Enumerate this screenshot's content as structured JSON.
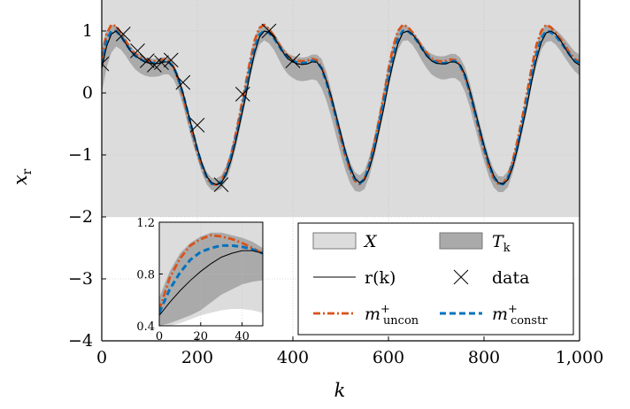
{
  "chart_data": {
    "type": "line",
    "xlabel": "k",
    "ylabel": "x",
    "ylabel_sub": "r",
    "xlim": [
      0,
      1000
    ],
    "ylim": [
      -4,
      1.5
    ],
    "xticks": [
      0,
      200,
      400,
      600,
      800,
      1000
    ],
    "xtick_labels": [
      "0",
      "200",
      "400",
      "600",
      "800",
      "1,000"
    ],
    "yticks": [
      1,
      0,
      -1,
      -2,
      -3,
      -4
    ],
    "ytick_labels": [
      "1",
      "0",
      "−1",
      "−2",
      "−3",
      "−4"
    ],
    "grid": true,
    "region_X": {
      "y_min": -2,
      "y_max": 1.5,
      "color": "#dcdcdc"
    },
    "series": [
      {
        "name": "r(k)",
        "style": "solid",
        "color": "#000000",
        "x": [
          0,
          10,
          20,
          30,
          40,
          50,
          60,
          70,
          80,
          90,
          100,
          110,
          120,
          130,
          140,
          150,
          160,
          170,
          180,
          190,
          200,
          210,
          220,
          230,
          240,
          250,
          260,
          270,
          280,
          290,
          300,
          310,
          320,
          330,
          340,
          350,
          360,
          370,
          380,
          390,
          400,
          410,
          420,
          430,
          440,
          450,
          460,
          470,
          480,
          490,
          500,
          510,
          520,
          530,
          540,
          550,
          560,
          570,
          580,
          590,
          600,
          610,
          620,
          630,
          640,
          650,
          660,
          670,
          680,
          690,
          700,
          710,
          720,
          730,
          740,
          750,
          760,
          770,
          780,
          790,
          800,
          810,
          820,
          830,
          840,
          850,
          860,
          870,
          880,
          890,
          900,
          910,
          920,
          930,
          940,
          950,
          960,
          970,
          980,
          990,
          1000
        ],
        "y": [
          0.4,
          0.75,
          0.95,
          1.0,
          0.92,
          0.8,
          0.68,
          0.6,
          0.55,
          0.5,
          0.48,
          0.47,
          0.48,
          0.5,
          0.5,
          0.42,
          0.25,
          0.0,
          -0.3,
          -0.6,
          -0.9,
          -1.15,
          -1.35,
          -1.45,
          -1.48,
          -1.45,
          -1.32,
          -1.1,
          -0.8,
          -0.45,
          -0.1,
          0.3,
          0.65,
          0.9,
          1.0,
          0.98,
          0.9,
          0.78,
          0.65,
          0.55,
          0.5,
          0.47,
          0.46,
          0.47,
          0.5,
          0.5,
          0.4,
          0.2,
          -0.05,
          -0.35,
          -0.65,
          -0.95,
          -1.2,
          -1.38,
          -1.45,
          -1.4,
          -1.22,
          -0.95,
          -0.6,
          -0.25,
          0.15,
          0.5,
          0.8,
          0.97,
          1.0,
          0.95,
          0.85,
          0.72,
          0.6,
          0.52,
          0.48,
          0.47,
          0.47,
          0.5,
          0.5,
          0.45,
          0.3,
          0.05,
          -0.25,
          -0.55,
          -0.85,
          -1.12,
          -1.33,
          -1.45,
          -1.47,
          -1.4,
          -1.2,
          -0.9,
          -0.55,
          -0.2,
          0.2,
          0.55,
          0.82,
          0.97,
          1.0,
          0.95,
          0.85,
          0.72,
          0.6,
          0.5,
          0.45
        ]
      },
      {
        "name": "m⁺ uncon",
        "style": "dashdot",
        "color": "#d95319",
        "x": [
          0,
          10,
          20,
          30,
          40,
          50,
          60,
          70,
          80,
          90,
          100,
          110,
          120,
          130,
          140,
          150,
          160,
          170,
          180,
          190,
          200,
          210,
          220,
          230,
          240,
          250,
          260,
          270,
          280,
          290,
          300,
          310,
          320,
          330,
          340,
          350,
          360,
          370,
          380,
          390,
          400,
          410,
          420,
          430,
          440,
          450,
          460,
          470,
          480,
          490,
          500,
          510,
          520,
          530,
          540,
          550,
          560,
          570,
          580,
          590,
          600,
          610,
          620,
          630,
          640,
          650,
          660,
          670,
          680,
          690,
          700,
          710,
          720,
          730,
          740,
          750,
          760,
          770,
          780,
          790,
          800,
          810,
          820,
          830,
          840,
          850,
          860,
          870,
          880,
          890,
          900,
          910,
          920,
          930,
          940,
          950,
          960,
          970,
          980,
          990,
          1000
        ],
        "y": [
          0.55,
          0.95,
          1.1,
          1.08,
          0.97,
          0.84,
          0.72,
          0.63,
          0.58,
          0.54,
          0.52,
          0.51,
          0.52,
          0.54,
          0.52,
          0.42,
          0.22,
          -0.05,
          -0.36,
          -0.67,
          -0.96,
          -1.2,
          -1.38,
          -1.47,
          -1.48,
          -1.42,
          -1.27,
          -1.02,
          -0.68,
          -0.3,
          0.1,
          0.5,
          0.85,
          1.05,
          1.1,
          1.03,
          0.92,
          0.8,
          0.68,
          0.59,
          0.54,
          0.52,
          0.51,
          0.52,
          0.55,
          0.53,
          0.42,
          0.2,
          -0.08,
          -0.4,
          -0.72,
          -1.02,
          -1.26,
          -1.42,
          -1.47,
          -1.38,
          -1.15,
          -0.83,
          -0.45,
          -0.05,
          0.38,
          0.75,
          1.0,
          1.1,
          1.07,
          0.98,
          0.87,
          0.75,
          0.64,
          0.56,
          0.52,
          0.51,
          0.52,
          0.54,
          0.53,
          0.45,
          0.28,
          0.02,
          -0.3,
          -0.62,
          -0.92,
          -1.18,
          -1.37,
          -1.47,
          -1.46,
          -1.35,
          -1.1,
          -0.77,
          -0.4,
          0.0,
          0.42,
          0.78,
          1.0,
          1.1,
          1.06,
          0.97,
          0.87,
          0.76,
          0.64,
          0.55,
          0.5
        ]
      },
      {
        "name": "m⁺ constr",
        "style": "dashed",
        "color": "#0072bd",
        "x": [
          0,
          10,
          20,
          30,
          40,
          50,
          60,
          70,
          80,
          90,
          100,
          110,
          120,
          130,
          140,
          150,
          160,
          170,
          180,
          190,
          200,
          210,
          220,
          230,
          240,
          250,
          260,
          270,
          280,
          290,
          300,
          310,
          320,
          330,
          340,
          350,
          360,
          370,
          380,
          390,
          400,
          410,
          420,
          430,
          440,
          450,
          460,
          470,
          480,
          490,
          500,
          510,
          520,
          530,
          540,
          550,
          560,
          570,
          580,
          590,
          600,
          610,
          620,
          630,
          640,
          650,
          660,
          670,
          680,
          690,
          700,
          710,
          720,
          730,
          740,
          750,
          760,
          770,
          780,
          790,
          800,
          810,
          820,
          830,
          840,
          850,
          860,
          870,
          880,
          890,
          900,
          910,
          920,
          930,
          940,
          950,
          960,
          970,
          980,
          990,
          1000
        ],
        "y": [
          0.45,
          0.85,
          1.0,
          1.0,
          0.92,
          0.8,
          0.69,
          0.6,
          0.55,
          0.51,
          0.49,
          0.48,
          0.49,
          0.51,
          0.5,
          0.42,
          0.24,
          -0.02,
          -0.32,
          -0.62,
          -0.92,
          -1.17,
          -1.36,
          -1.46,
          -1.48,
          -1.44,
          -1.3,
          -1.06,
          -0.75,
          -0.4,
          -0.02,
          0.38,
          0.72,
          0.94,
          1.0,
          0.97,
          0.89,
          0.77,
          0.65,
          0.56,
          0.51,
          0.49,
          0.48,
          0.49,
          0.52,
          0.5,
          0.4,
          0.18,
          -0.08,
          -0.38,
          -0.68,
          -0.98,
          -1.22,
          -1.39,
          -1.46,
          -1.39,
          -1.18,
          -0.88,
          -0.52,
          -0.15,
          0.25,
          0.6,
          0.87,
          1.0,
          1.0,
          0.94,
          0.84,
          0.72,
          0.61,
          0.53,
          0.49,
          0.48,
          0.48,
          0.51,
          0.51,
          0.44,
          0.28,
          0.02,
          -0.28,
          -0.58,
          -0.88,
          -1.14,
          -1.35,
          -1.46,
          -1.47,
          -1.38,
          -1.16,
          -0.86,
          -0.5,
          -0.12,
          0.28,
          0.62,
          0.88,
          1.0,
          0.98,
          0.92,
          0.83,
          0.72,
          0.61,
          0.52,
          0.48
        ]
      }
    ],
    "band_T": {
      "name": "T_k",
      "color": "#aaaaaa",
      "x": [
        0,
        10,
        20,
        30,
        40,
        50,
        60,
        70,
        80,
        90,
        100,
        110,
        120,
        130,
        140,
        150,
        160,
        170,
        180,
        190,
        200,
        210,
        220,
        230,
        240,
        250,
        260,
        270,
        280,
        290,
        300,
        310,
        320,
        330,
        340,
        350,
        360,
        370,
        380,
        390,
        400,
        410,
        420,
        430,
        440,
        450,
        460,
        470,
        480,
        490,
        500,
        510,
        520,
        530,
        540,
        550,
        560,
        570,
        580,
        590,
        600,
        610,
        620,
        630,
        640,
        650,
        660,
        670,
        680,
        690,
        700,
        710,
        720,
        730,
        740,
        750,
        760,
        770,
        780,
        790,
        800,
        810,
        820,
        830,
        840,
        850,
        860,
        870,
        880,
        890,
        900,
        910,
        920,
        930,
        940,
        950,
        960,
        970,
        980,
        990,
        1000
      ],
      "upper": [
        0.75,
        1.0,
        1.1,
        1.08,
        1.0,
        0.88,
        0.76,
        0.67,
        0.62,
        0.58,
        0.56,
        0.55,
        0.56,
        0.58,
        0.56,
        0.48,
        0.3,
        0.05,
        -0.25,
        -0.55,
        -0.85,
        -1.1,
        -1.28,
        -1.37,
        -1.38,
        -1.33,
        -1.18,
        -0.94,
        -0.62,
        -0.25,
        0.15,
        0.55,
        0.9,
        1.07,
        1.1,
        1.06,
        0.97,
        0.85,
        0.73,
        0.64,
        0.6,
        0.58,
        0.57,
        0.58,
        0.62,
        0.62,
        0.55,
        0.35,
        0.05,
        -0.27,
        -0.58,
        -0.88,
        -1.12,
        -1.28,
        -1.33,
        -1.25,
        -1.03,
        -0.72,
        -0.35,
        0.05,
        0.45,
        0.8,
        1.03,
        1.1,
        1.08,
        1.0,
        0.9,
        0.79,
        0.69,
        0.63,
        0.6,
        0.59,
        0.6,
        0.63,
        0.63,
        0.57,
        0.42,
        0.17,
        -0.13,
        -0.45,
        -0.75,
        -1.02,
        -1.23,
        -1.34,
        -1.35,
        -1.26,
        -1.05,
        -0.75,
        -0.38,
        0.02,
        0.42,
        0.78,
        1.02,
        1.1,
        1.08,
        1.02,
        0.95,
        0.86,
        0.76,
        0.67,
        0.62
      ],
      "lower": [
        0.0,
        0.4,
        0.65,
        0.75,
        0.7,
        0.6,
        0.48,
        0.38,
        0.32,
        0.28,
        0.26,
        0.26,
        0.27,
        0.3,
        0.3,
        0.22,
        0.05,
        -0.2,
        -0.5,
        -0.8,
        -1.05,
        -1.3,
        -1.48,
        -1.57,
        -1.58,
        -1.55,
        -1.42,
        -1.2,
        -0.9,
        -0.55,
        -0.18,
        0.22,
        0.55,
        0.78,
        0.85,
        0.8,
        0.7,
        0.55,
        0.4,
        0.3,
        0.24,
        0.2,
        0.19,
        0.2,
        0.22,
        0.2,
        0.08,
        -0.12,
        -0.38,
        -0.68,
        -0.98,
        -1.25,
        -1.46,
        -1.58,
        -1.6,
        -1.55,
        -1.35,
        -1.05,
        -0.7,
        -0.32,
        0.08,
        0.42,
        0.7,
        0.84,
        0.85,
        0.78,
        0.66,
        0.52,
        0.4,
        0.3,
        0.25,
        0.22,
        0.22,
        0.24,
        0.24,
        0.18,
        0.02,
        -0.22,
        -0.52,
        -0.82,
        -1.1,
        -1.35,
        -1.52,
        -1.6,
        -1.6,
        -1.52,
        -1.3,
        -1.0,
        -0.65,
        -0.28,
        0.12,
        0.45,
        0.7,
        0.82,
        0.84,
        0.78,
        0.68,
        0.56,
        0.45,
        0.35,
        0.28
      ]
    },
    "data_points": {
      "name": "data",
      "marker": "x",
      "x": [
        0,
        45,
        75,
        95,
        110,
        125,
        145,
        170,
        200,
        250,
        295,
        350,
        400
      ],
      "y": [
        0.47,
        0.95,
        0.68,
        0.52,
        0.45,
        0.49,
        0.53,
        0.17,
        -0.52,
        -1.48,
        -0.02,
        1.0,
        0.52
      ]
    },
    "legend": {
      "position": "bottom-right",
      "entries": [
        {
          "label": "X",
          "kind": "region"
        },
        {
          "label": "T",
          "sub": "k",
          "kind": "band"
        },
        {
          "label": "r(k)",
          "kind": "line"
        },
        {
          "label": "data",
          "kind": "marker"
        },
        {
          "label": "m",
          "sup": "+",
          "sub": "uncon",
          "kind": "dashdot"
        },
        {
          "label": "m",
          "sup": "+",
          "sub": "constr",
          "kind": "dashed"
        }
      ]
    },
    "inset": {
      "xlim": [
        0,
        50
      ],
      "ylim": [
        0.4,
        1.2
      ],
      "xticks": [
        0,
        20,
        40
      ],
      "xtick_labels": [
        "0",
        "20",
        "40"
      ],
      "yticks": [
        1.2,
        0.8,
        0.4
      ],
      "ytick_labels": [
        "1.2",
        "0.8",
        "0.4"
      ],
      "x": [
        0,
        5,
        10,
        15,
        20,
        25,
        30,
        35,
        40,
        45,
        50
      ],
      "r": [
        0.48,
        0.58,
        0.67,
        0.75,
        0.82,
        0.88,
        0.93,
        0.96,
        0.98,
        0.98,
        0.96
      ],
      "uncon": [
        0.52,
        0.77,
        0.92,
        1.02,
        1.07,
        1.1,
        1.09,
        1.07,
        1.04,
        1.0,
        0.96
      ],
      "constr": [
        0.5,
        0.68,
        0.81,
        0.91,
        0.97,
        1.0,
        1.02,
        1.02,
        1.01,
        0.99,
        0.96
      ],
      "band_upper": [
        0.62,
        0.82,
        0.96,
        1.04,
        1.09,
        1.12,
        1.12,
        1.1,
        1.08,
        1.05,
        1.0
      ],
      "band_lower": [
        0.4,
        0.42,
        0.45,
        0.48,
        0.52,
        0.58,
        0.64,
        0.68,
        0.72,
        0.74,
        0.75
      ],
      "x_region_lower": [
        0.4,
        0.4,
        0.42,
        0.45,
        0.48,
        0.5,
        0.52,
        0.53,
        0.53,
        0.52,
        0.5
      ]
    }
  }
}
